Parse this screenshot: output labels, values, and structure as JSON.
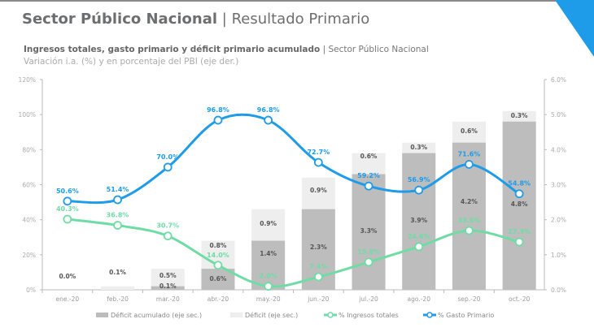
{
  "header": {
    "title_bold": "Sector Público Nacional",
    "title_sep": " | ",
    "title_rest": "Resultado Primario",
    "subtitle_bold": "Ingresos totales, gasto primario y déficit primario acumulado",
    "subtitle_rest": " | Sector Público Nacional",
    "subtitle2": "Variación i.a. (%) y en porcentaje del PBI (eje der.)"
  },
  "chart_data": {
    "type": "bar+line",
    "categories": [
      "ene.-20",
      "feb.-20",
      "mar.-20",
      "abr.-20",
      "may.-20",
      "jun.-20",
      "jul.-20",
      "ago.-20",
      "sep.-20",
      "oct.-20"
    ],
    "y_left": {
      "ticks": [
        "0%",
        "20%",
        "40%",
        "60%",
        "80%",
        "100%",
        "120%"
      ],
      "range": [
        0,
        120
      ]
    },
    "y_right": {
      "ticks": [
        "0.0%",
        "1.0%",
        "2.0%",
        "3.0%",
        "4.0%",
        "5.0%",
        "6.0%"
      ],
      "range": [
        0,
        6
      ]
    },
    "series": [
      {
        "name": "Déficit acumulado (eje sec.)",
        "type": "bar",
        "axis": "right",
        "color": "#bdbdbd",
        "values": [
          0.0,
          0.0,
          0.1,
          0.6,
          1.4,
          2.3,
          3.3,
          3.9,
          4.2,
          4.8
        ],
        "labels": [
          "",
          "",
          "0.1%",
          "0.6%",
          "1.4%",
          "2.3%",
          "3.3%",
          "3.9%",
          "4.2%",
          "4.8%"
        ]
      },
      {
        "name": "Déficit  (eje sec.)",
        "type": "bar-stacked",
        "axis": "right",
        "color": "#eeeeee",
        "values": [
          0.0,
          0.1,
          0.5,
          0.8,
          0.9,
          0.9,
          0.6,
          0.3,
          0.6,
          0.3
        ],
        "labels": [
          "0.0%",
          "0.1%",
          "0.5%",
          "0.8%",
          "0.9%",
          "0.9%",
          "0.6%",
          "0.3%",
          "0.6%",
          "0.3%"
        ]
      },
      {
        "name": "% Ingresos totales",
        "type": "line",
        "axis": "left",
        "color": "#6fdca6",
        "values": [
          40.3,
          36.8,
          30.7,
          14.0,
          2.0,
          7.4,
          15.8,
          24.6,
          33.8,
          27.3
        ],
        "labels": [
          "40.3%",
          "36.8%",
          "30.7%",
          "14.0%",
          "2.0%",
          "7.4%",
          "15.8%",
          "24.6%",
          "33.8%",
          "27.3%"
        ]
      },
      {
        "name": "% Gasto Primario",
        "type": "line",
        "axis": "left",
        "color": "#1e9be9",
        "values": [
          50.6,
          51.4,
          70.0,
          96.8,
          96.8,
          72.7,
          59.2,
          56.9,
          71.6,
          54.8
        ],
        "labels": [
          "50.6%",
          "51.4%",
          "70.0%",
          "96.8%",
          "96.8%",
          "72.7%",
          "59.2%",
          "56.9%",
          "71.6%",
          "54.8%"
        ]
      }
    ],
    "legend": "bottom"
  }
}
